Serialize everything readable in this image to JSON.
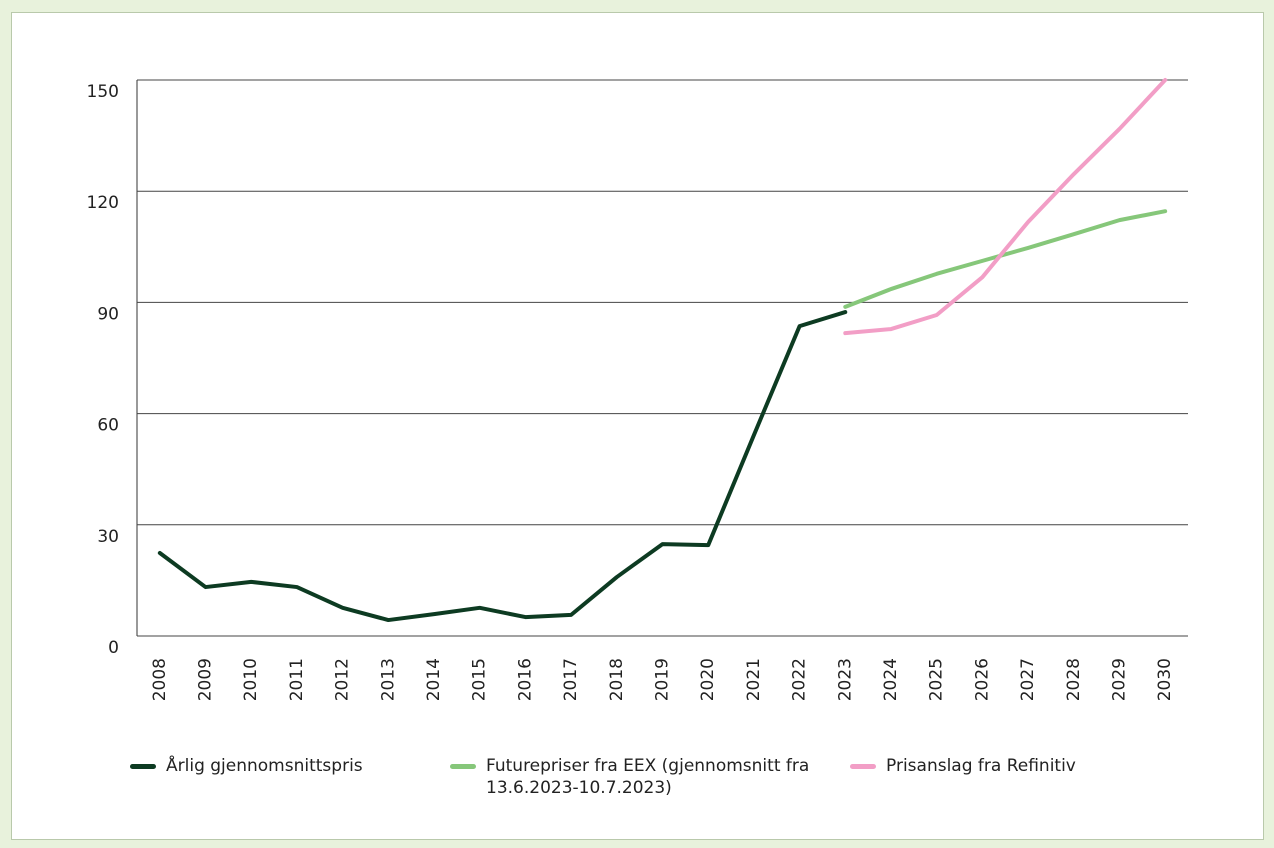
{
  "chart_data": {
    "type": "line",
    "categories": [
      "2008",
      "2009",
      "2010",
      "2011",
      "2012",
      "2013",
      "2014",
      "2015",
      "2016",
      "2017",
      "2018",
      "2019",
      "2020",
      "2021",
      "2022",
      "2023",
      "2024",
      "2025",
      "2026",
      "2027",
      "2028",
      "2029",
      "2030"
    ],
    "series": [
      {
        "name": "Årlig gjennomsnittspris",
        "color": "#0d3b22",
        "values": [
          22.4,
          13.2,
          14.6,
          13.2,
          7.6,
          4.3,
          5.9,
          7.6,
          5.1,
          5.7,
          15.9,
          24.8,
          24.5,
          54.2,
          83.6,
          87.4,
          null,
          null,
          null,
          null,
          null,
          null,
          null
        ]
      },
      {
        "name": "Futurepriser fra EEX (gjennomsnitt fra 13.6.2023-10.7.2023)",
        "color": "#86c77a",
        "values": [
          null,
          null,
          null,
          null,
          null,
          null,
          null,
          null,
          null,
          null,
          null,
          null,
          null,
          null,
          null,
          88.8,
          93.6,
          97.7,
          101.2,
          104.7,
          108.4,
          112.2,
          114.6
        ]
      },
      {
        "name": "Prisanslag fra Refinitiv",
        "color": "#f29ec6",
        "values": [
          null,
          null,
          null,
          null,
          null,
          null,
          null,
          null,
          null,
          null,
          null,
          null,
          null,
          null,
          null,
          81.7,
          82.8,
          86.6,
          96.8,
          111.7,
          124.6,
          136.8,
          150
        ]
      }
    ],
    "ylim": [
      0,
      150
    ],
    "yticks": [
      0,
      30,
      60,
      90,
      120,
      150
    ],
    "grid": true
  }
}
